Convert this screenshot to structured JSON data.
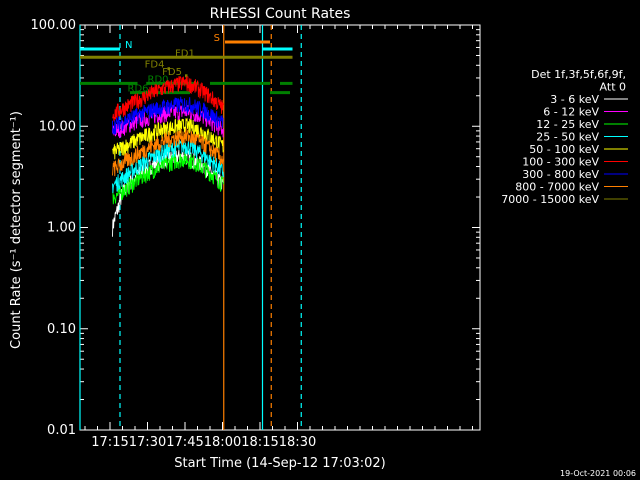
{
  "chart_data": {
    "type": "line",
    "title": "RHESSI Count Rates",
    "xlabel": "Start Time (14-Sep-12 17:03:02)",
    "ylabel": "Count Rate (s⁻¹ detector segment⁻¹)",
    "yscale": "log",
    "ylim": [
      0.01,
      100
    ],
    "xlim_minutes": [
      0,
      160
    ],
    "xticks": [
      {
        "label": "17:15",
        "t": 12
      },
      {
        "label": "17:30",
        "t": 27
      },
      {
        "label": "17:45",
        "t": 42
      },
      {
        "label": "18:00",
        "t": 57
      },
      {
        "label": "18:15",
        "t": 72
      },
      {
        "label": "18:30",
        "t": 87
      }
    ],
    "yticks": [
      {
        "label": "0.01",
        "v": 0.01
      },
      {
        "label": "0.10",
        "v": 0.1
      },
      {
        "label": "1.00",
        "v": 1
      },
      {
        "label": "10.00",
        "v": 10
      },
      {
        "label": "100.00",
        "v": 100
      }
    ],
    "legend_header": [
      "Det 1f,3f,5f,6f,9f,",
      "Att 0"
    ],
    "series": [
      {
        "name": "3 - 6 keV",
        "color": "#ffffff",
        "t": [
          13,
          15,
          17,
          20,
          25,
          30,
          35,
          40,
          42,
          45,
          50,
          55,
          57.5
        ],
        "y": [
          1.0,
          1.5,
          2.2,
          2.8,
          3.6,
          4.3,
          4.8,
          5.0,
          5.1,
          4.7,
          4.0,
          3.0,
          2.7
        ]
      },
      {
        "name": "6 - 12 keV",
        "color": "#ff00ff",
        "t": [
          13,
          15,
          20,
          25,
          30,
          35,
          40,
          42,
          45,
          50,
          55,
          57.5
        ],
        "y": [
          8.8,
          9.2,
          10.5,
          11.8,
          12.8,
          13.5,
          13.9,
          14.0,
          13.6,
          12.2,
          10.0,
          9.3
        ]
      },
      {
        "name": "12 - 25 keV",
        "color": "#00ff00",
        "t": [
          13,
          15,
          20,
          25,
          30,
          35,
          40,
          42,
          45,
          50,
          55,
          57.5
        ],
        "y": [
          2.0,
          2.1,
          2.6,
          3.2,
          3.8,
          4.3,
          4.7,
          4.8,
          4.5,
          3.8,
          3.0,
          2.6
        ]
      },
      {
        "name": "25 - 50 keV",
        "color": "#00ffff",
        "t": [
          13,
          15,
          20,
          25,
          30,
          35,
          40,
          42,
          45,
          50,
          55,
          57.5
        ],
        "y": [
          2.6,
          2.8,
          3.5,
          4.3,
          5.1,
          5.8,
          6.3,
          6.5,
          6.1,
          5.1,
          4.0,
          3.5
        ]
      },
      {
        "name": "50 - 100 keV",
        "color": "#ffff00",
        "t": [
          13,
          15,
          20,
          25,
          30,
          35,
          40,
          42,
          45,
          50,
          55,
          57.5
        ],
        "y": [
          5.5,
          5.8,
          6.8,
          7.8,
          8.9,
          9.6,
          10.0,
          10.2,
          9.8,
          8.5,
          7.0,
          6.3
        ]
      },
      {
        "name": "100 - 300 keV",
        "color": "#ff0000",
        "t": [
          13,
          15,
          20,
          25,
          30,
          35,
          40,
          42,
          45,
          50,
          55,
          57.5
        ],
        "y": [
          13,
          14,
          16.5,
          19,
          22,
          24.5,
          26.5,
          27,
          25.5,
          21.5,
          17,
          15
        ]
      },
      {
        "name": "300 - 800 keV",
        "color": "#0000ff",
        "t": [
          13,
          15,
          20,
          25,
          30,
          35,
          40,
          42,
          45,
          50,
          55,
          57.5
        ],
        "y": [
          10,
          10.5,
          12,
          13.5,
          14.8,
          15.8,
          16.5,
          16.7,
          16.2,
          14.2,
          11.8,
          10.7
        ]
      },
      {
        "name": "800 - 7000 keV",
        "color": "#ff8000",
        "t": [
          13,
          15,
          20,
          25,
          30,
          35,
          40,
          42,
          45,
          50,
          55,
          57.5
        ],
        "y": [
          3.8,
          4.0,
          4.8,
          5.7,
          6.6,
          7.4,
          7.9,
          8.1,
          7.7,
          6.6,
          5.2,
          4.6
        ]
      },
      {
        "name": "7000 - 15000 keV",
        "color": "#808000",
        "t": [],
        "y": []
      }
    ],
    "events": {
      "flags": [
        {
          "label": "N",
          "color": "#00ffff",
          "segments": [
            [
              0,
              16
            ],
            [
              73,
              85
            ]
          ],
          "y": 58
        },
        {
          "label": "S",
          "color": "#ff8000",
          "segments": [
            [
              58,
              76
            ]
          ],
          "y": 68
        },
        {
          "label": "FD1",
          "color": "#808000",
          "segments": [
            [
              0,
              85
            ]
          ],
          "y": 48
        },
        {
          "label": "FD4",
          "color": "#808000",
          "segments": [
            [
              35,
              36
            ]
          ],
          "y": 37
        },
        {
          "label": "FD5",
          "color": "#808000",
          "segments": [
            [
              42,
              43
            ]
          ],
          "y": 31.5
        },
        {
          "label": "RD0",
          "color": "#008000",
          "segments": [
            [
              0,
              23
            ],
            [
              26.5,
              45.5
            ],
            [
              45.5,
              47.5
            ],
            [
              52,
              76
            ],
            [
              80,
              85
            ]
          ],
          "y": 26.5
        },
        {
          "label": "RD6",
          "color": "#008000",
          "segments": [
            [
              20,
              44
            ],
            [
              76,
              84
            ]
          ],
          "y": 21.5
        }
      ],
      "vertical_lines": [
        {
          "t": 0,
          "color": "#00ffff",
          "style": "solid"
        },
        {
          "t": 16,
          "color": "#00ffff",
          "style": "dashed"
        },
        {
          "t": 57.5,
          "color": "#ff8000",
          "style": "solid"
        },
        {
          "t": 73,
          "color": "#00ffff",
          "style": "solid"
        },
        {
          "t": 76.5,
          "color": "#ff8000",
          "style": "dashed"
        },
        {
          "t": 88.5,
          "color": "#00ffff",
          "style": "dashed"
        }
      ]
    },
    "footer": "19-Oct-2021 00:06"
  }
}
